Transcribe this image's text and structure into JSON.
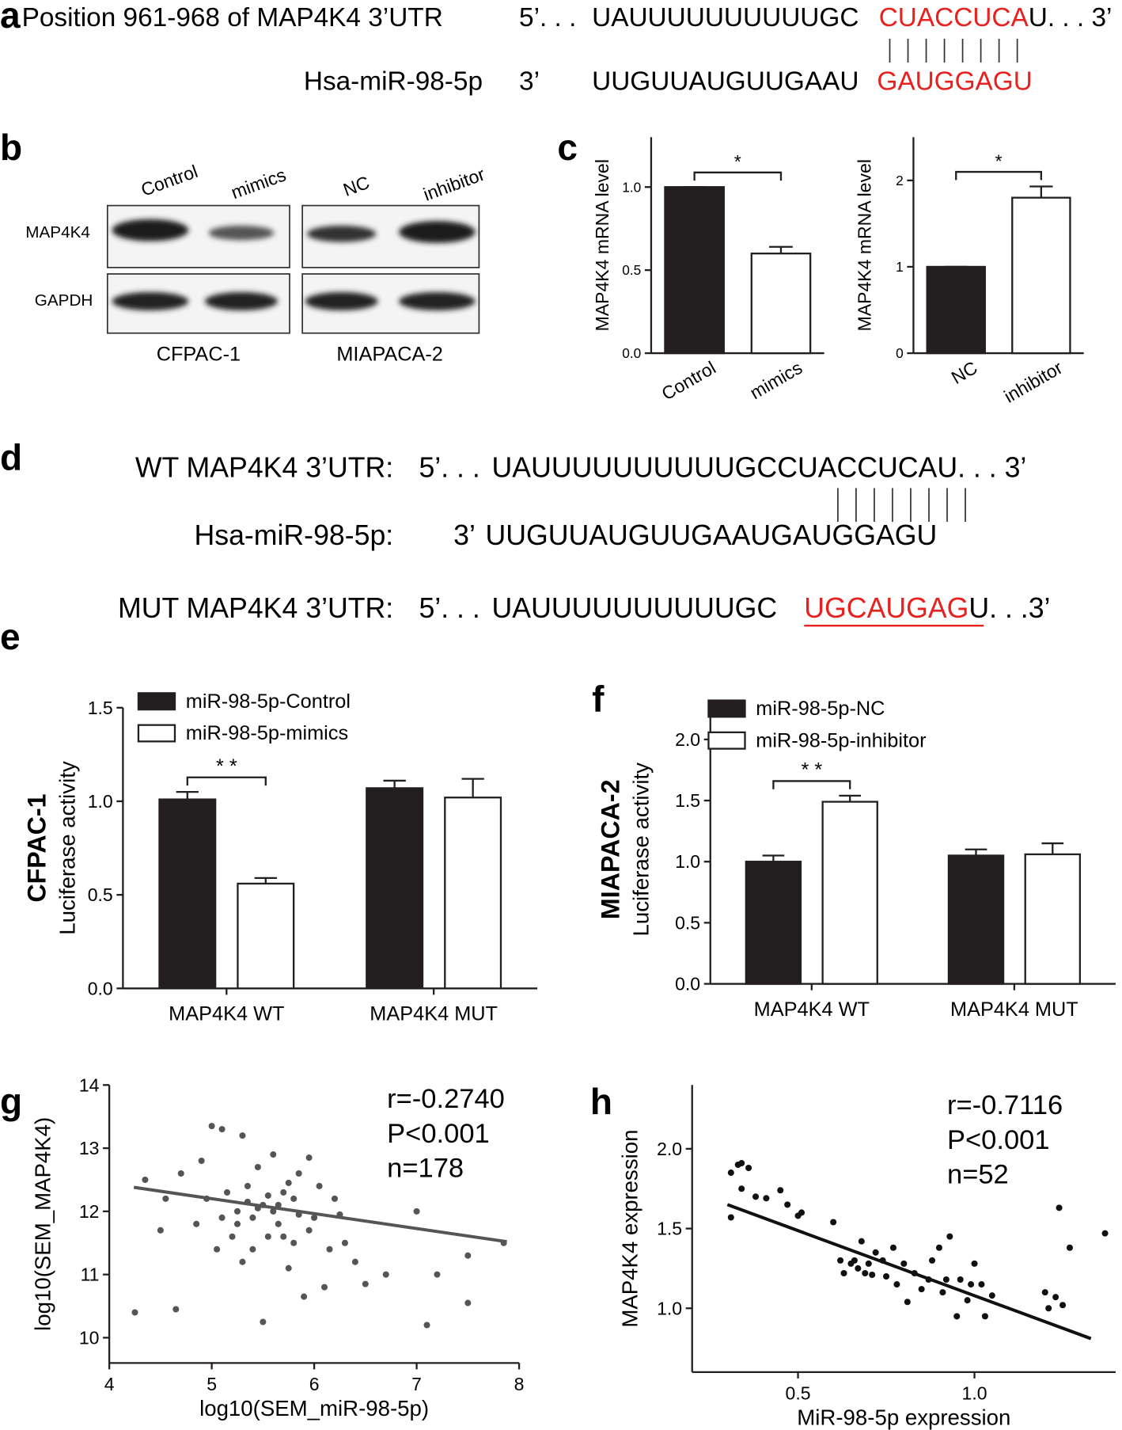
{
  "panel_labels": [
    "a",
    "b",
    "c",
    "d",
    "e",
    "f",
    "g",
    "h"
  ],
  "panel_a": {
    "rows": [
      {
        "name": "Position 961-968 of MAP4K4 3’UTR",
        "prime": "5’. . .",
        "seq": "UAUUUUUUUUUUGC",
        "site": "CUACCUCA",
        "tail": "U. . . 3’"
      },
      {
        "name": "Hsa-miR-98-5p",
        "prime": "3’",
        "seq": "UUGUUAUGUUGAAU",
        "site": "GAUGGAGU"
      }
    ]
  },
  "panel_b": {
    "lanes": [
      "Control",
      "mimics",
      "NC",
      "inhibitor"
    ],
    "proteins": [
      "MAP4K4",
      "GAPDH"
    ],
    "cell_lines": [
      "CFPAC-1",
      "MIAPACA-2"
    ]
  },
  "panel_d": {
    "rows": [
      {
        "name": "WT MAP4K4 3’UTR:",
        "prime": "5’. . .",
        "seq": "UAUUUUUUUUUUGCCUACCUCAU. . . 3’"
      },
      {
        "name": "Hsa-miR-98-5p:",
        "prime": "3’",
        "seq": "UUGUUAUGUUGAAUGAUGGAGU"
      },
      {
        "name": "MUT MAP4K4 3’UTR:",
        "prime": "5’. . .",
        "seq": "UAUUUUUUUUUUGC",
        "site": "UGCAUGAG",
        "tail": "U. . .3’"
      }
    ]
  },
  "chart_data": [
    {
      "type": "bar",
      "ylabel": "MAP4K4 mRNA level",
      "categories": [
        "Control",
        "mimics"
      ],
      "values": [
        1.0,
        0.6
      ],
      "errors": [
        0,
        0.04
      ],
      "colors": [
        "#231f20",
        "#ffffff"
      ],
      "ylim": [
        0,
        1.3
      ],
      "yticks": [
        {
          "value": 0,
          "label": "0.0"
        },
        {
          "value": 0.5,
          "label": "0.5"
        },
        {
          "value": 1,
          "label": "1.0"
        }
      ],
      "significance": "*"
    },
    {
      "type": "bar",
      "ylabel": "MAP4K4 mRNA level",
      "categories": [
        "NC",
        "inhibitor"
      ],
      "values": [
        1.0,
        1.8
      ],
      "errors": [
        0,
        0.13
      ],
      "colors": [
        "#231f20",
        "#ffffff"
      ],
      "ylim": [
        0,
        2.5
      ],
      "yticks": [
        0,
        1,
        2
      ],
      "significance": "*"
    },
    {
      "type": "bar",
      "ylabel_title": "CFPAC-1",
      "ylabel": "Luciferase activity",
      "categories": [
        "MAP4K4 WT",
        "MAP4K4 MUT"
      ],
      "series": [
        {
          "name": "miR-98-5p-Control",
          "color": "#231f20",
          "values": [
            1.01,
            1.07
          ],
          "errors": [
            0.04,
            0.04
          ]
        },
        {
          "name": "miR-98-5p-mimics",
          "color": "#ffffff",
          "values": [
            0.56,
            1.02
          ],
          "errors": [
            0.03,
            0.1
          ]
        }
      ],
      "ylim": [
        0,
        1.5
      ],
      "yticks": [
        {
          "value": 0,
          "label": "0.0"
        },
        {
          "value": 0.5,
          "label": "0.5"
        },
        {
          "value": 1,
          "label": "1.0"
        },
        {
          "value": 1.5,
          "label": "1.5"
        }
      ],
      "significance": "* *"
    },
    {
      "type": "bar",
      "ylabel_title": "MIAPACA-2",
      "ylabel": "Luciferase activity",
      "categories": [
        "MAP4K4 WT",
        "MAP4K4 MUT"
      ],
      "series": [
        {
          "name": "miR-98-5p-NC",
          "color": "#231f20",
          "values": [
            1.0,
            1.05
          ],
          "errors": [
            0.05,
            0.05
          ]
        },
        {
          "name": "miR-98-5p-inhibitor",
          "color": "#ffffff",
          "values": [
            1.49,
            1.06
          ],
          "errors": [
            0.05,
            0.09
          ]
        }
      ],
      "ylim": [
        0,
        2.2
      ],
      "yticks": [
        {
          "value": 0,
          "label": "0.0"
        },
        {
          "value": 0.5,
          "label": "0.5"
        },
        {
          "value": 1,
          "label": "1.0"
        },
        {
          "value": 1.5,
          "label": "1.5"
        },
        {
          "value": 2,
          "label": "2.0"
        }
      ],
      "significance": "* *"
    },
    {
      "type": "scatter",
      "xlabel": "log10(SEM_miR-98-5p)",
      "ylabel": "log10(SEM_MAP4K4)",
      "color": "#555555",
      "x": [
        4.25,
        4.35,
        4.5,
        4.55,
        4.65,
        4.7,
        4.85,
        4.9,
        4.95,
        5.0,
        5.05,
        5.1,
        5.15,
        5.2,
        5.25,
        5.3,
        5.3,
        5.35,
        5.4,
        5.45,
        5.5,
        5.5,
        5.55,
        5.6,
        5.6,
        5.65,
        5.7,
        5.75,
        5.8,
        5.8,
        5.85,
        5.9,
        5.95,
        6.0,
        6.05,
        6.1,
        6.15,
        6.2,
        6.3,
        6.4,
        6.5,
        6.7,
        7.0,
        7.1,
        7.2,
        7.5,
        7.5,
        7.85,
        5.25,
        5.45,
        5.55,
        5.35,
        5.65,
        5.75,
        5.95,
        5.1,
        5.4,
        6.25,
        5.7,
        5.85
      ],
      "values": [
        10.4,
        12.5,
        11.7,
        12.2,
        10.45,
        12.6,
        11.8,
        12.8,
        12.2,
        13.35,
        11.4,
        13.3,
        12.3,
        11.6,
        12.0,
        13.2,
        11.2,
        12.4,
        11.9,
        12.7,
        10.25,
        12.1,
        11.6,
        12.0,
        12.9,
        11.8,
        12.3,
        11.1,
        12.2,
        11.5,
        12.6,
        10.65,
        12.85,
        11.9,
        12.4,
        10.8,
        11.4,
        12.2,
        11.5,
        11.2,
        10.85,
        11.0,
        12.0,
        10.2,
        11.0,
        10.55,
        11.3,
        11.5,
        11.8,
        12.05,
        12.25,
        12.15,
        12.1,
        12.45,
        11.7,
        11.9,
        11.4,
        11.95,
        11.6,
        11.95
      ],
      "fit": {
        "x": [
          4.24,
          7.88
        ],
        "y": [
          12.38,
          11.52
        ]
      },
      "annotations": [
        "r=-0.2740",
        "P<0.001",
        "n=178"
      ],
      "xlim": [
        4,
        8
      ],
      "xticks": [
        4,
        5,
        6,
        7,
        8
      ],
      "ylim": [
        9.6,
        14
      ],
      "yticks": [
        10,
        11,
        12,
        13,
        14
      ]
    },
    {
      "type": "scatter",
      "xlabel": "MiR-98-5p expression",
      "ylabel": "MAP4K4 expression",
      "color": "#111111",
      "x": [
        0.31,
        0.31,
        0.33,
        0.34,
        0.34,
        0.36,
        0.38,
        0.41,
        0.45,
        0.47,
        0.5,
        0.51,
        0.6,
        0.62,
        0.63,
        0.65,
        0.66,
        0.67,
        0.68,
        0.69,
        0.7,
        0.71,
        0.72,
        0.74,
        0.75,
        0.77,
        0.78,
        0.8,
        0.81,
        0.83,
        0.85,
        0.87,
        0.88,
        0.9,
        0.91,
        0.92,
        0.93,
        0.95,
        0.96,
        0.98,
        1.0,
        1.02,
        1.03,
        1.05,
        1.2,
        1.21,
        1.23,
        1.24,
        1.25,
        1.27,
        1.37,
        0.99
      ],
      "values": [
        1.85,
        1.57,
        1.9,
        1.91,
        1.75,
        1.88,
        1.7,
        1.69,
        1.74,
        1.65,
        1.58,
        1.6,
        1.54,
        1.3,
        1.22,
        1.28,
        1.3,
        1.25,
        1.42,
        1.22,
        1.28,
        1.21,
        1.35,
        1.3,
        1.2,
        1.38,
        1.15,
        1.28,
        1.04,
        1.22,
        1.12,
        1.18,
        1.3,
        1.38,
        1.1,
        1.18,
        1.45,
        0.95,
        1.18,
        1.05,
        1.28,
        1.15,
        0.95,
        1.08,
        1.1,
        1.0,
        1.07,
        1.63,
        1.02,
        1.38,
        1.47,
        1.15
      ],
      "fit": {
        "x": [
          0.3,
          1.33
        ],
        "y": [
          1.65,
          0.81
        ]
      },
      "annotations": [
        "r=-0.7116",
        "P<0.001",
        "n=52"
      ],
      "xlim": [
        0.2,
        1.4
      ],
      "xticks": [
        {
          "value": 0.5,
          "label": "0.5"
        },
        {
          "value": 1,
          "label": "1.0"
        }
      ],
      "ylim": [
        0.6,
        2.4
      ],
      "yticks": [
        {
          "value": 1,
          "label": "1.0"
        },
        {
          "value": 1.5,
          "label": "1.5"
        },
        {
          "value": 2,
          "label": "2.0"
        }
      ]
    }
  ]
}
